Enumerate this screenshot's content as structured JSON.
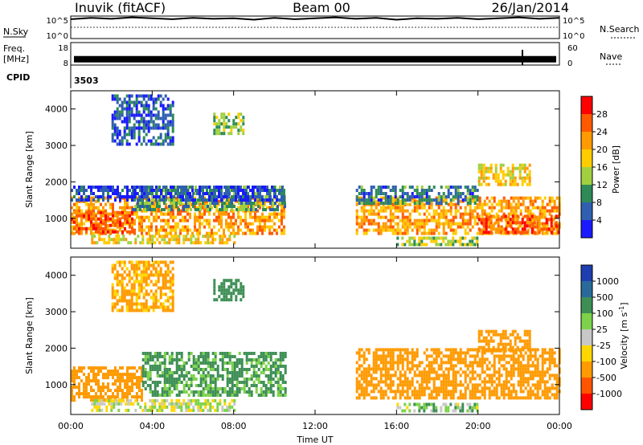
{
  "header": {
    "station": "Inuvik (fitACF)",
    "beam": "Beam 00",
    "date": "26/Jan/2014"
  },
  "status_panels": {
    "nsky_label": "N.Sky",
    "nsky_ticks": [
      "10^5",
      "10^0"
    ],
    "nsearch_label": "N.Search",
    "nsearch_ticks": [
      "10^5",
      "10^0"
    ],
    "freq_label": "Freq.",
    "freq_unit": "[MHz]",
    "freq_ticks": [
      "18",
      "8"
    ],
    "nave_label": "Nave",
    "nave_ticks": [
      "60",
      "0"
    ],
    "cpid_label": "CPID",
    "cpid_value": "3503"
  },
  "axes": {
    "ylabel": "Slant Range [km]",
    "yticks": [
      "4000",
      "3000",
      "2000",
      "1000"
    ],
    "xlabel": "Time UT",
    "xticks": [
      "00:00",
      "04:00",
      "08:00",
      "12:00",
      "16:00",
      "20:00",
      "00:00"
    ]
  },
  "colorbars": {
    "power": {
      "label": "Power [dB]",
      "ticks": [
        "28",
        "24",
        "20",
        "16",
        "12",
        "8",
        "4"
      ],
      "colors": [
        "#ff0000",
        "#ff5a00",
        "#ff9a00",
        "#ffcc00",
        "#a0d040",
        "#2e8b57",
        "#2f5fb0",
        "#1a1aff"
      ]
    },
    "velocity": {
      "label": "Velocity [m s^-1]",
      "ticks": [
        "1000",
        "500",
        "100",
        "25",
        "-25",
        "-100",
        "-500",
        "-1000"
      ],
      "colors": [
        "#1e3fb0",
        "#2a6a9a",
        "#3e8f55",
        "#7dd24a",
        "#c8c8c8",
        "#ffd700",
        "#ff9a00",
        "#ff5500",
        "#ff0000"
      ]
    }
  },
  "chart_data": [
    {
      "type": "line",
      "series": [
        {
          "values": [
            4.3,
            4.6,
            4.4,
            4.7,
            4.5,
            4.3,
            4.6,
            4.4,
            4.5,
            4.2,
            4.6,
            4.3,
            4.5,
            4.7,
            4.4,
            4.6,
            4.2,
            4.5,
            4.4,
            4.6,
            4.3,
            4.5,
            4.7,
            4.4,
            4.6
          ]
        }
      ],
      "x": [
        0,
        1,
        2,
        3,
        4,
        5,
        6,
        7,
        8,
        9,
        10,
        11,
        12,
        13,
        14,
        15,
        16,
        17,
        18,
        19,
        20,
        21,
        22,
        23,
        24
      ],
      "ylim": [
        0,
        5
      ],
      "xlim": [
        0,
        24
      ]
    },
    {
      "type": "line",
      "series": [
        {
          "values": [
            10.6,
            10.6,
            10.6,
            10.6,
            10.6,
            10.6,
            10.6,
            10.6,
            10.6,
            10.6,
            10.6,
            10.6,
            10.6,
            10.6,
            10.6,
            10.6,
            10.6,
            10.6,
            10.6,
            10.6,
            10.6,
            10.6,
            10.6,
            10.6,
            10.6
          ]
        }
      ],
      "x": [
        0,
        1,
        2,
        3,
        4,
        5,
        6,
        7,
        8,
        9,
        10,
        11,
        12,
        13,
        14,
        15,
        16,
        17,
        18,
        19,
        20,
        21,
        22,
        23,
        24
      ],
      "ylim": [
        8,
        18
      ],
      "xlim": [
        0,
        24
      ]
    },
    {
      "type": "heatmap",
      "quantity": "power",
      "xlim": [
        0,
        24
      ],
      "ylim": [
        180,
        4500
      ],
      "regions": [
        {
          "t0": 0.0,
          "t1": 10.5,
          "r0": 600,
          "r1": 1600,
          "value": 24
        },
        {
          "t0": 0.0,
          "t1": 3.0,
          "r0": 600,
          "r1": 1200,
          "value": 28
        },
        {
          "t0": 3.0,
          "t1": 10.5,
          "r0": 1200,
          "r1": 1900,
          "value": 12
        },
        {
          "t0": 0.0,
          "t1": 10.5,
          "r0": 1500,
          "r1": 1900,
          "value": 6
        },
        {
          "t0": 1.0,
          "t1": 8.0,
          "r0": 300,
          "r1": 550,
          "value": 20
        },
        {
          "t0": 14.0,
          "t1": 24.0,
          "r0": 600,
          "r1": 1600,
          "value": 24
        },
        {
          "t0": 20.0,
          "t1": 24.0,
          "r0": 600,
          "r1": 1100,
          "value": 28
        },
        {
          "t0": 14.0,
          "t1": 20.0,
          "r0": 1400,
          "r1": 1900,
          "value": 10
        },
        {
          "t0": 16.0,
          "t1": 20.0,
          "r0": 250,
          "r1": 500,
          "value": 16
        },
        {
          "t0": 20.0,
          "t1": 22.5,
          "r0": 1900,
          "r1": 2500,
          "value": 20
        },
        {
          "t0": 2.0,
          "t1": 5.0,
          "r0": 3000,
          "r1": 4400,
          "value": 8
        },
        {
          "t0": 7.0,
          "t1": 8.5,
          "r0": 3300,
          "r1": 3900,
          "value": 16
        }
      ]
    },
    {
      "type": "heatmap",
      "quantity": "velocity",
      "xlim": [
        0,
        24
      ],
      "ylim": [
        180,
        4500
      ],
      "regions": [
        {
          "t0": 0.0,
          "t1": 3.5,
          "r0": 600,
          "r1": 1500,
          "value": -400
        },
        {
          "t0": 3.5,
          "t1": 10.5,
          "r0": 700,
          "r1": 1900,
          "value": 150
        },
        {
          "t0": 1.0,
          "t1": 8.0,
          "r0": 300,
          "r1": 600,
          "value": 0
        },
        {
          "t0": 14.0,
          "t1": 24.0,
          "r0": 600,
          "r1": 2000,
          "value": -400
        },
        {
          "t0": 16.0,
          "t1": 20.0,
          "r0": 250,
          "r1": 500,
          "value": 60
        },
        {
          "t0": 20.0,
          "t1": 22.5,
          "r0": 1900,
          "r1": 2500,
          "value": -300
        },
        {
          "t0": 2.0,
          "t1": 5.0,
          "r0": 3000,
          "r1": 4400,
          "value": -150
        },
        {
          "t0": 7.0,
          "t1": 8.5,
          "r0": 3300,
          "r1": 3900,
          "value": 200
        }
      ]
    }
  ]
}
